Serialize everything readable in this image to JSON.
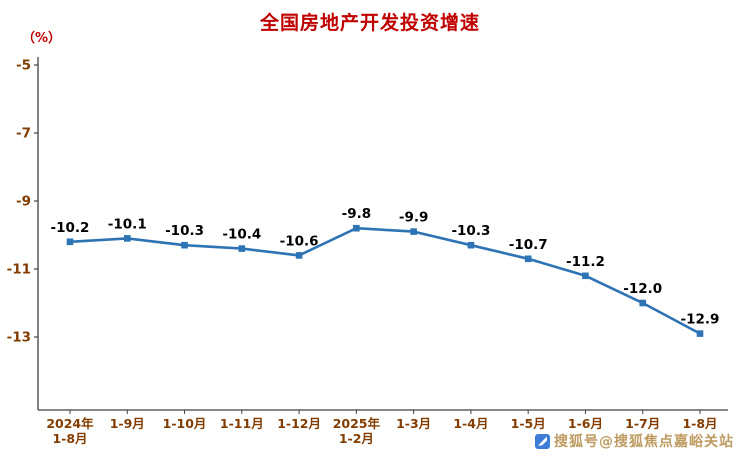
{
  "header": {
    "title": "全国房地产开发投资增速",
    "unit_label": "（%）"
  },
  "chart_data": {
    "type": "line",
    "title": "全国房地产开发投资增速",
    "unit_label": "（%）",
    "categories": [
      "2024年\n1-8月",
      "1-9月",
      "1-10月",
      "1-11月",
      "1-12月",
      "2025年\n1-2月",
      "1-3月",
      "1-4月",
      "1-5月",
      "1-6月",
      "1-7月",
      "1-8月"
    ],
    "values": [
      -10.2,
      -10.1,
      -10.3,
      -10.4,
      -10.6,
      -9.8,
      -9.9,
      -10.3,
      -10.7,
      -11.2,
      -12.0,
      -12.9
    ],
    "yticks": [
      -5,
      -7,
      -9,
      -11,
      -13
    ],
    "ylim": [
      -15,
      -5
    ],
    "xlabel": "",
    "ylabel": "（%）",
    "grid": false,
    "legend": false,
    "line_color": "#2E74B5",
    "marker": "square",
    "label_color": "#000000",
    "axis_color": "#404040",
    "tick_label_color": "#833C00"
  },
  "watermark": {
    "text": "搜狐号@搜狐焦点嘉峪关站",
    "color": "#BE9B60",
    "logo": "sohu-logo-icon"
  }
}
